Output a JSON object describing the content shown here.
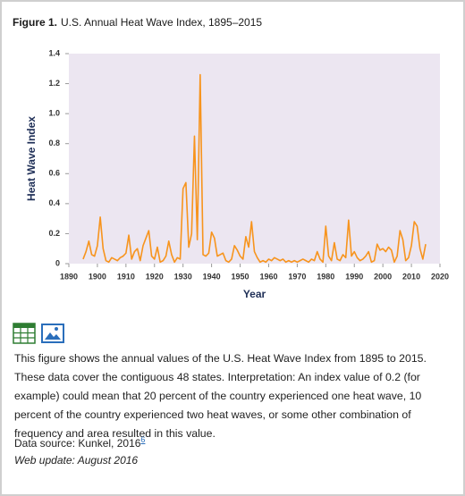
{
  "figure_label": "Figure 1.",
  "chart_data": {
    "type": "line",
    "title": "U.S. Annual Heat Wave Index, 1895–2015",
    "xlabel": "Year",
    "ylabel": "Heat Wave Index",
    "x": [
      1895,
      1896,
      1897,
      1898,
      1899,
      1900,
      1901,
      1902,
      1903,
      1904,
      1905,
      1906,
      1907,
      1908,
      1909,
      1910,
      1911,
      1912,
      1913,
      1914,
      1915,
      1916,
      1917,
      1918,
      1919,
      1920,
      1921,
      1922,
      1923,
      1924,
      1925,
      1926,
      1927,
      1928,
      1929,
      1930,
      1931,
      1932,
      1933,
      1934,
      1935,
      1936,
      1937,
      1938,
      1939,
      1940,
      1941,
      1942,
      1943,
      1944,
      1945,
      1946,
      1947,
      1948,
      1949,
      1950,
      1951,
      1952,
      1953,
      1954,
      1955,
      1956,
      1957,
      1958,
      1959,
      1960,
      1961,
      1962,
      1963,
      1964,
      1965,
      1966,
      1967,
      1968,
      1969,
      1970,
      1971,
      1972,
      1973,
      1974,
      1975,
      1976,
      1977,
      1978,
      1979,
      1980,
      1981,
      1982,
      1983,
      1984,
      1985,
      1986,
      1987,
      1988,
      1989,
      1990,
      1991,
      1992,
      1993,
      1994,
      1995,
      1996,
      1997,
      1998,
      1999,
      2000,
      2001,
      2002,
      2003,
      2004,
      2005,
      2006,
      2007,
      2008,
      2009,
      2010,
      2011,
      2012,
      2013,
      2014,
      2015
    ],
    "series": [
      {
        "name": "Heat Wave Index",
        "color": "#f7941d",
        "values": [
          0.03,
          0.08,
          0.15,
          0.06,
          0.05,
          0.12,
          0.31,
          0.1,
          0.02,
          0.01,
          0.04,
          0.03,
          0.02,
          0.04,
          0.05,
          0.07,
          0.19,
          0.03,
          0.08,
          0.1,
          0.02,
          0.12,
          0.17,
          0.22,
          0.05,
          0.03,
          0.11,
          0.01,
          0.02,
          0.05,
          0.15,
          0.06,
          0.01,
          0.04,
          0.03,
          0.5,
          0.54,
          0.11,
          0.2,
          0.85,
          0.16,
          1.26,
          0.06,
          0.05,
          0.07,
          0.21,
          0.17,
          0.05,
          0.06,
          0.07,
          0.02,
          0.01,
          0.03,
          0.12,
          0.09,
          0.05,
          0.03,
          0.18,
          0.11,
          0.28,
          0.08,
          0.04,
          0.01,
          0.02,
          0.01,
          0.03,
          0.02,
          0.04,
          0.03,
          0.02,
          0.03,
          0.01,
          0.02,
          0.01,
          0.02,
          0.01,
          0.02,
          0.03,
          0.02,
          0.01,
          0.03,
          0.02,
          0.08,
          0.03,
          0.01,
          0.25,
          0.05,
          0.02,
          0.14,
          0.03,
          0.02,
          0.06,
          0.04,
          0.29,
          0.05,
          0.08,
          0.04,
          0.02,
          0.03,
          0.05,
          0.08,
          0.01,
          0.02,
          0.13,
          0.09,
          0.1,
          0.08,
          0.11,
          0.09,
          0.01,
          0.05,
          0.22,
          0.16,
          0.02,
          0.04,
          0.12,
          0.28,
          0.25,
          0.1,
          0.03,
          0.13
        ]
      }
    ],
    "xlim": [
      1890,
      2020
    ],
    "xticks": [
      1890,
      1900,
      1910,
      1920,
      1930,
      1940,
      1950,
      1960,
      1970,
      1980,
      1990,
      2000,
      2010,
      2020
    ],
    "ylim": [
      0,
      1.4
    ],
    "yticks": [
      0,
      0.2,
      0.4,
      0.6,
      0.8,
      {
        "value": 1,
        "label": "1.0"
      },
      1.2,
      1.4
    ],
    "grid": false
  },
  "description": "This figure shows the annual values of the U.S. Heat Wave Index from 1895 to 2015. These data cover the contiguous 48 states. Interpretation: An index value of 0.2 (for example) could mean that 20 percent of the country experienced one heat wave, 10 percent of the country experienced two heat waves, or some other combination of frequency and area resulted in this value.",
  "data_source": "Data source: Kunkel, 2016",
  "footnote": "6",
  "web_update": "Web update: August 2016"
}
